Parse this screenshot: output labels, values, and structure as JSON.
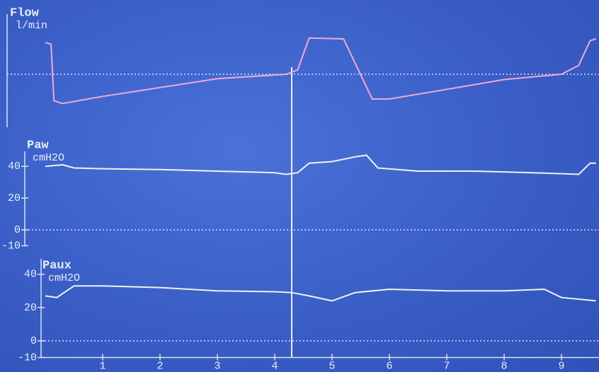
{
  "chart_data": [
    {
      "type": "line",
      "title": "Flow",
      "subtitle": "l/min",
      "x": [
        0,
        0.1,
        0.15,
        0.3,
        1,
        2,
        3,
        4.2,
        4.4,
        4.6,
        5.2,
        5.7,
        6,
        7,
        8,
        9,
        9.3,
        9.5,
        9.6
      ],
      "series": [
        {
          "color": "#f0a8d8",
          "values": [
            36,
            34,
            -30,
            -33,
            -25,
            -15,
            -5,
            0,
            5,
            41,
            40,
            -28,
            -28,
            -17,
            -6,
            0,
            10,
            38,
            40
          ]
        }
      ],
      "xlim": [
        0,
        9.6
      ],
      "ylim": [
        -60,
        60
      ]
    },
    {
      "type": "line",
      "title": "Paw",
      "subtitle": "cmH2O",
      "x": [
        0,
        0.3,
        0.5,
        1,
        2,
        3,
        4,
        4.2,
        4.4,
        4.6,
        5,
        5.4,
        5.6,
        5.8,
        6.5,
        7.5,
        8.5,
        9.3,
        9.5,
        9.6
      ],
      "series": [
        {
          "color": "#eef2f4",
          "values": [
            40,
            41,
            39,
            38.5,
            38,
            37,
            36,
            35,
            36,
            42,
            43,
            46,
            47,
            39,
            37,
            37,
            36,
            35,
            42,
            42
          ]
        }
      ],
      "xlim": [
        0,
        9.6
      ],
      "ylim": [
        -10,
        45
      ],
      "yticks": [
        40,
        20,
        0,
        -10
      ]
    },
    {
      "type": "line",
      "title": "Paux",
      "subtitle": "cmH2O",
      "x": [
        0,
        0.2,
        0.5,
        1,
        2,
        3,
        4,
        4.3,
        4.6,
        5,
        5.4,
        6,
        7,
        8,
        8.7,
        9,
        9.6
      ],
      "series": [
        {
          "color": "#eef2f4",
          "values": [
            27,
            26,
            33,
            33,
            32,
            30,
            29.5,
            29,
            27,
            24,
            29,
            31,
            30,
            30,
            31,
            26,
            24
          ]
        }
      ],
      "xlim": [
        0,
        9.6
      ],
      "ylim": [
        -10,
        45
      ],
      "yticks": [
        40,
        20,
        0,
        -10
      ],
      "xticks": [
        1,
        2,
        3,
        4,
        5,
        6,
        7,
        8,
        9
      ]
    }
  ]
}
